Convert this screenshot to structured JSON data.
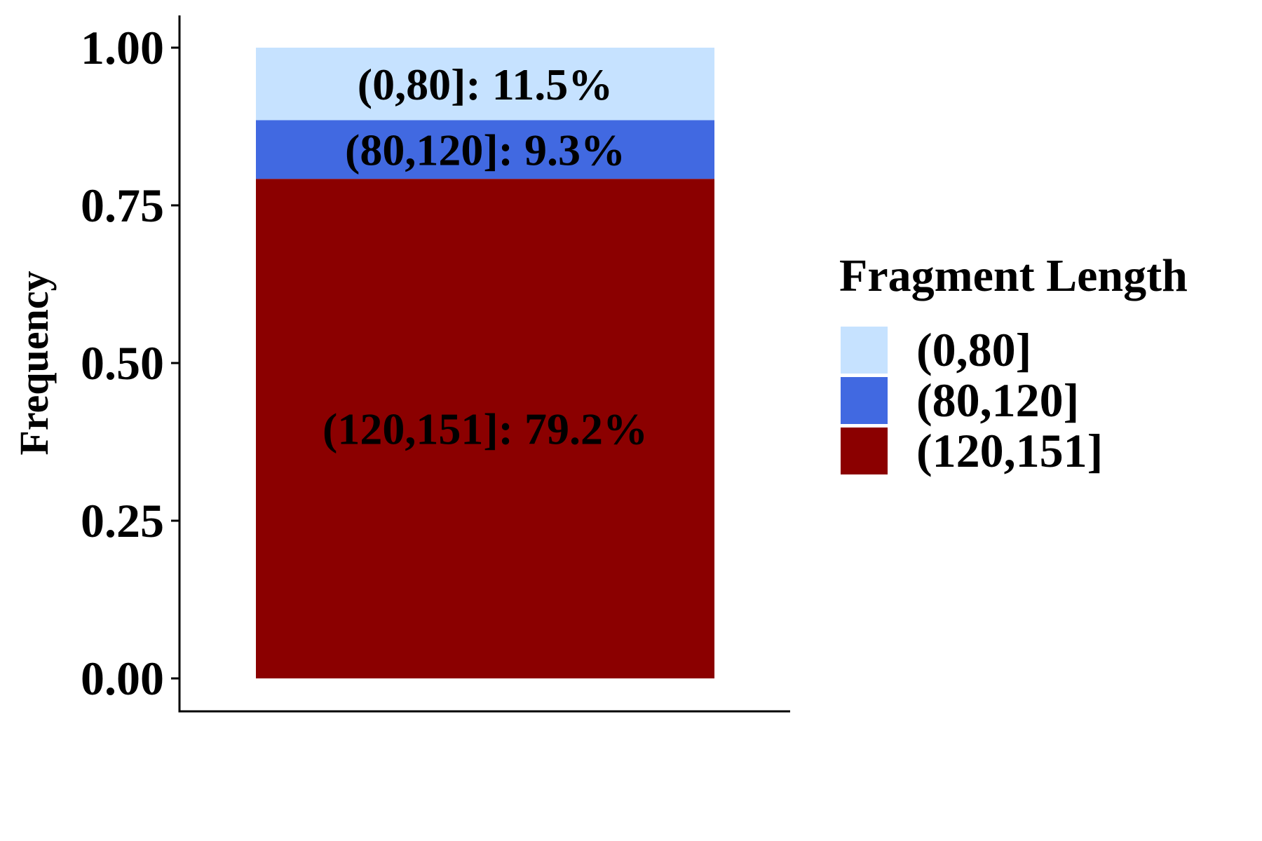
{
  "chart_data": {
    "type": "bar",
    "stacked": true,
    "orientation": "vertical",
    "ylabel": "Frequency",
    "xlabel": "",
    "ylim": [
      0,
      1
    ],
    "yticks": [
      "0.00",
      "0.25",
      "0.50",
      "0.75",
      "1.00"
    ],
    "grid": false,
    "legend_title": "Fragment Length",
    "legend_position": "right",
    "series": [
      {
        "name": "(120,151]",
        "value": 0.792,
        "label": "(120,151]: 79.2%",
        "color": "#8B0000"
      },
      {
        "name": "(80,120]",
        "value": 0.093,
        "label": "(80,120]: 9.3%",
        "color": "#4169E1"
      },
      {
        "name": "(0,80]",
        "value": 0.115,
        "label": "(0,80]: 11.5%",
        "color": "#C6E2FF"
      }
    ],
    "legend_order": [
      "(0,80]",
      "(80,120]",
      "(120,151]"
    ]
  }
}
